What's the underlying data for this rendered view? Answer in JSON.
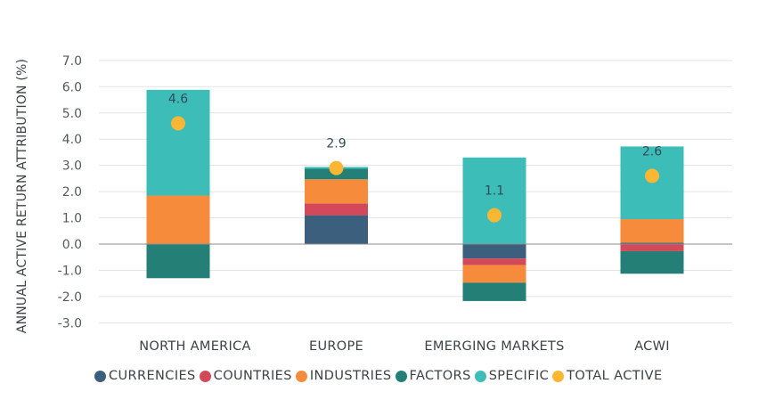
{
  "chart_data": {
    "type": "bar",
    "stacked": true,
    "title": "",
    "xlabel": "",
    "ylabel": "ANNUAL ACTIVE RETURN ATTRIBUTION (%)",
    "ylim": [
      -3.0,
      7.0
    ],
    "yticks": [
      "7.0",
      "6.0",
      "5.0",
      "4.0",
      "3.0",
      "2.0",
      "1.0",
      "0.0",
      "-1.0",
      "-2.0",
      "-3.0"
    ],
    "ytick_values": [
      7,
      6,
      5,
      4,
      3,
      2,
      1,
      0,
      -1,
      -2,
      -3
    ],
    "grid": true,
    "legend_position": "bottom",
    "categories": [
      "NORTH AMERICA",
      "EUROPE",
      "EMERGING MARKETS",
      "ACWI"
    ],
    "series": [
      {
        "name": "CURRENCIES",
        "color": "#3b5f7c",
        "values": [
          0.0,
          1.1,
          -0.55,
          0.05
        ]
      },
      {
        "name": "COUNTRIES",
        "color": "#d4495a",
        "values": [
          0.0,
          0.45,
          -0.25,
          -0.27
        ]
      },
      {
        "name": "INDUSTRIES",
        "color": "#f68b3b",
        "values": [
          1.85,
          0.92,
          -0.67,
          0.9
        ]
      },
      {
        "name": "FACTORS",
        "color": "#247f77",
        "values": [
          -1.3,
          0.4,
          -0.7,
          -0.86
        ]
      },
      {
        "name": "SPECIFIC",
        "color": "#3dbdb8",
        "values": [
          4.03,
          0.07,
          3.3,
          2.77
        ]
      }
    ],
    "total_active": {
      "name": "TOTAL ACTIVE",
      "color": "#fbb633",
      "values": [
        4.6,
        2.9,
        1.1,
        2.6
      ],
      "labels": [
        "4.6",
        "2.9",
        "1.1",
        "2.6"
      ]
    }
  }
}
